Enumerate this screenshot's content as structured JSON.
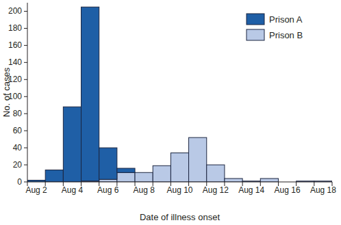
{
  "chart_data": {
    "type": "bar",
    "stacked": true,
    "x_label": "Date of illness onset",
    "y_label": "No. of cases",
    "categories": [
      "Aug 2",
      null,
      "Aug 4",
      null,
      "Aug 6",
      null,
      "Aug 8",
      null,
      "Aug 10",
      null,
      "Aug 12",
      null,
      "Aug 14",
      null,
      "Aug 16",
      null,
      "Aug 18"
    ],
    "series": [
      {
        "name": "Prison A",
        "color": "#1f5fa6",
        "values": [
          2,
          14,
          88,
          204,
          37,
          5,
          0,
          0,
          0,
          0,
          0,
          0,
          0,
          0,
          0,
          0,
          0
        ]
      },
      {
        "name": "Prison B",
        "color": "#b9c9e6",
        "values": [
          0,
          0,
          0,
          1,
          3,
          11,
          11,
          19,
          34,
          52,
          20,
          4,
          1,
          4,
          0,
          1,
          1
        ]
      }
    ],
    "ylim": [
      0,
      210
    ],
    "yticks": [
      0,
      20,
      40,
      60,
      80,
      100,
      120,
      140,
      160,
      180,
      200
    ],
    "legend": "upper right",
    "grid": false
  }
}
